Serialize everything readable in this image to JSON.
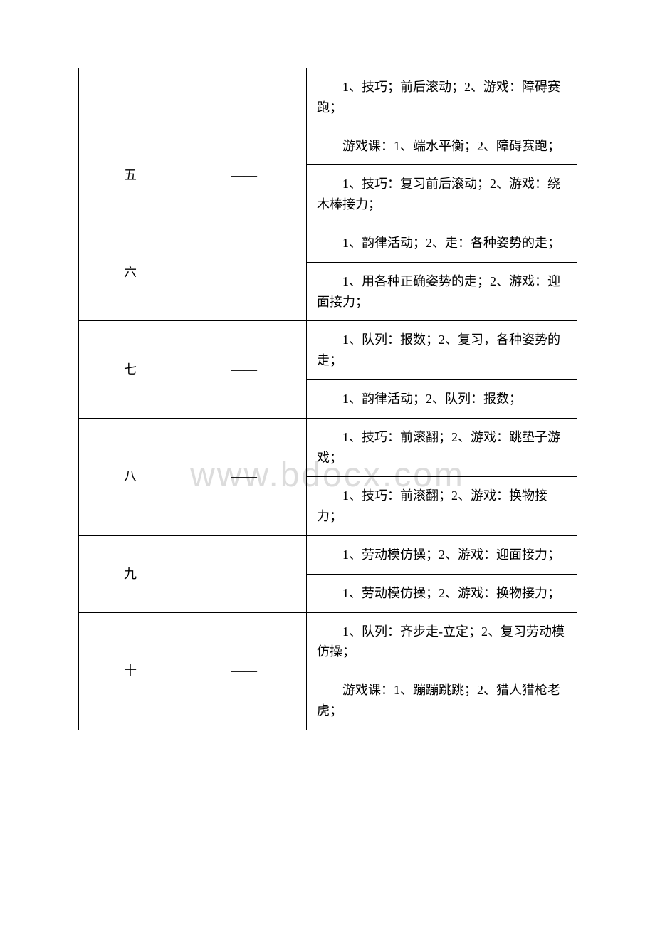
{
  "watermark": "www.bdocx.com",
  "table": {
    "columns": {
      "week_width": 145,
      "mid_width": 175,
      "content_width": 380
    },
    "border_color": "#000000",
    "background_color": "#ffffff",
    "text_color": "#000000",
    "font_size": 18,
    "rows": [
      {
        "week": "",
        "mid": "",
        "contents": [
          "1、技巧；前后滚动；2、游戏：障碍赛跑；"
        ]
      },
      {
        "week": "五",
        "mid": "——",
        "contents": [
          "游戏课：1、端水平衡；2、障碍赛跑；",
          "1、技巧：复习前后滚动；2、游戏：绕木棒接力；"
        ]
      },
      {
        "week": "六",
        "mid": "——",
        "contents": [
          "1、韵律活动；2、走：各种姿势的走；",
          "1、用各种正确姿势的走；2、游戏：迎面接力；"
        ]
      },
      {
        "week": "七",
        "mid": "——",
        "contents": [
          "1、队列：报数；2、复习，各种姿势的走；",
          "1、韵律活动；2、队列：报数；"
        ]
      },
      {
        "week": "八",
        "mid": "——",
        "contents": [
          "1、技巧：前滚翻；2、游戏：跳垫子游戏；",
          "1、技巧：前滚翻；2、游戏：换物接力；"
        ]
      },
      {
        "week": "九",
        "mid": "——",
        "contents": [
          "1、劳动模仿操；2、游戏：迎面接力；",
          "1、劳动模仿操；2、游戏：换物接力；"
        ]
      },
      {
        "week": "十",
        "mid": "——",
        "contents": [
          "1、队列：齐步走-立定；2、复习劳动模仿操；",
          "游戏课：1、蹦蹦跳跳；2、猎人猎枪老虎；"
        ]
      }
    ]
  }
}
